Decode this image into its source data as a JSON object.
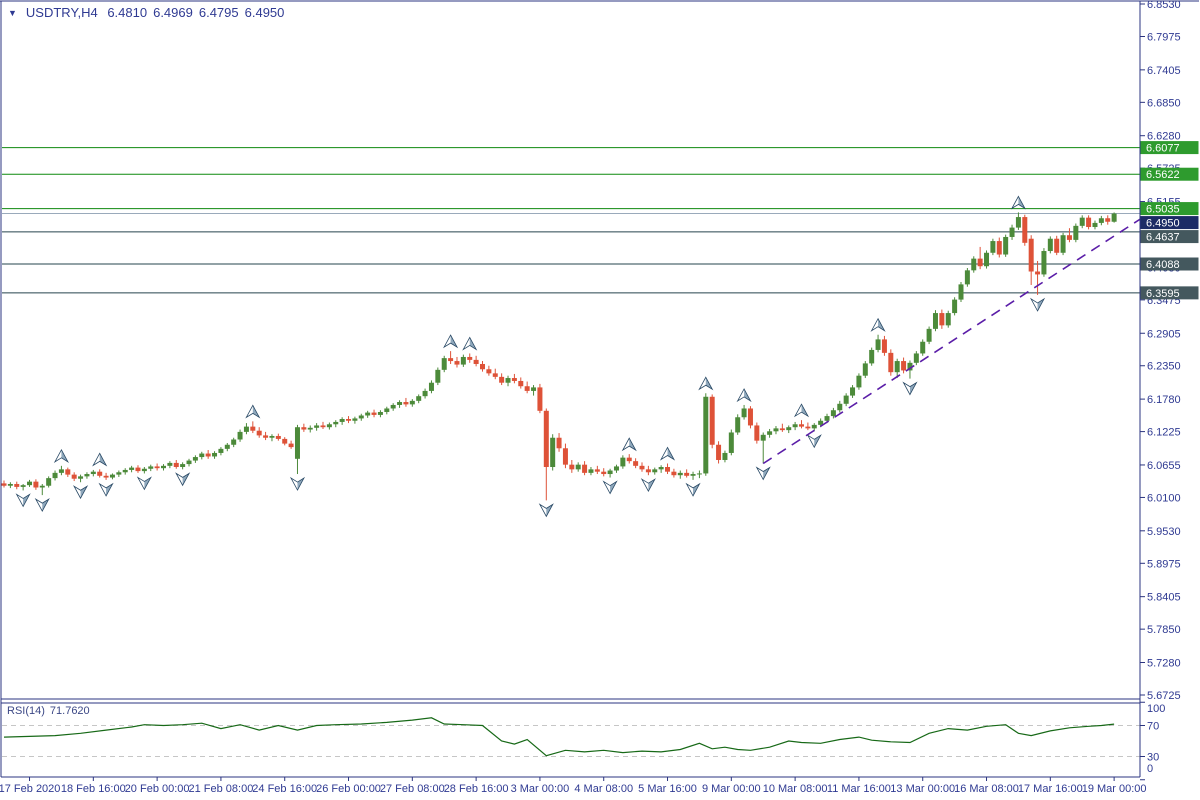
{
  "header": {
    "symbol_period": "USDTRY,H4",
    "open": "6.4810",
    "high": "6.4969",
    "low": "6.4795",
    "close": "6.4950"
  },
  "rsi_header": {
    "label": "RSI(14)",
    "value": "71.7620"
  },
  "colors": {
    "background": "#FFFFFF",
    "border": "#2B3480",
    "axis_text": "#2F3A92",
    "candle_up": "#4C8A3A",
    "candle_down": "#DE5238",
    "level_green_line": "#0F8A0F",
    "level_green_tag": "#2E9B2E",
    "level_dark_line": "#26444E",
    "level_dark_tag": "#44585E",
    "current_price_line": "#9AAABB",
    "current_price_tag": "#1C2B66",
    "trendline": "#5B1EA8",
    "rsi_line": "#176917",
    "rsi_dash": "#C6C6C6",
    "fractal_fill_light": "#FFFFFF",
    "fractal_fill_dark": "#8FA8BC",
    "fractal_stroke": "#2A4A66",
    "tag_text": "#FFFFFF"
  },
  "chart_data": {
    "type": "candlestick",
    "symbol": "USDTRY",
    "timeframe": "H4",
    "y_axis": {
      "top_price": 6.853,
      "bottom_price": 5.6725,
      "ticks": [
        6.853,
        6.7975,
        6.7405,
        6.685,
        6.628,
        6.5725,
        6.5155,
        6.46,
        6.403,
        6.3475,
        6.2905,
        6.235,
        6.178,
        6.1225,
        6.0655,
        6.01,
        5.953,
        5.8975,
        5.8405,
        5.785,
        5.728,
        5.6725
      ]
    },
    "x_axis": {
      "labels": [
        "17 Feb 2020",
        "18 Feb 16:00",
        "20 Feb 00:00",
        "21 Feb 08:00",
        "24 Feb 16:00",
        "26 Feb 00:00",
        "27 Feb 08:00",
        "28 Feb 16:00",
        "3 Mar 00:00",
        "4 Mar 08:00",
        "5 Mar 16:00",
        "9 Mar 00:00",
        "10 Mar 08:00",
        "11 Mar 16:00",
        "13 Mar 00:00",
        "16 Mar 08:00",
        "17 Mar 16:00",
        "19 Mar 00:00"
      ],
      "first_label_bar": 4,
      "bars_per_label": 10
    },
    "levels": [
      {
        "price": 6.6077,
        "label": "6.6077",
        "kind": "green"
      },
      {
        "price": 6.5622,
        "label": "6.5622",
        "kind": "green"
      },
      {
        "price": 6.5035,
        "label": "6.5035",
        "kind": "green"
      },
      {
        "price": 6.4637,
        "label": "6.4637",
        "kind": "dark"
      },
      {
        "price": 6.4088,
        "label": "6.4088",
        "kind": "dark"
      },
      {
        "price": 6.3595,
        "label": "6.3595",
        "kind": "dark"
      }
    ],
    "current_price": {
      "value": 6.495,
      "label": "6.4950"
    },
    "trendline": {
      "anchor1": {
        "bar": 119,
        "price": 6.068
      },
      "anchor2": {
        "bar": 180,
        "price": 6.499
      },
      "style": "dashed"
    },
    "candles": [
      [
        6.034,
        6.039,
        6.027,
        6.03
      ],
      [
        6.03,
        6.036,
        6.026,
        6.033
      ],
      [
        6.033,
        6.037,
        6.024,
        6.028
      ],
      [
        6.028,
        6.033,
        6.022,
        6.031
      ],
      [
        6.031,
        6.04,
        6.028,
        6.037
      ],
      [
        6.037,
        6.041,
        6.023,
        6.027
      ],
      [
        6.027,
        6.033,
        6.014,
        6.03
      ],
      [
        6.03,
        6.046,
        6.027,
        6.043
      ],
      [
        6.043,
        6.056,
        6.039,
        6.052
      ],
      [
        6.052,
        6.064,
        6.048,
        6.058
      ],
      [
        6.058,
        6.061,
        6.045,
        6.049
      ],
      [
        6.049,
        6.053,
        6.038,
        6.042
      ],
      [
        6.042,
        6.049,
        6.036,
        6.046
      ],
      [
        6.046,
        6.053,
        6.042,
        6.05
      ],
      [
        6.05,
        6.057,
        6.046,
        6.054
      ],
      [
        6.054,
        6.058,
        6.044,
        6.047
      ],
      [
        6.047,
        6.052,
        6.04,
        6.044
      ],
      [
        6.044,
        6.051,
        6.041,
        6.049
      ],
      [
        6.049,
        6.056,
        6.045,
        6.053
      ],
      [
        6.053,
        6.06,
        6.049,
        6.057
      ],
      [
        6.057,
        6.064,
        6.053,
        6.061
      ],
      [
        6.061,
        6.065,
        6.052,
        6.055
      ],
      [
        6.055,
        6.062,
        6.051,
        6.059
      ],
      [
        6.059,
        6.066,
        6.055,
        6.063
      ],
      [
        6.063,
        6.068,
        6.056,
        6.06
      ],
      [
        6.06,
        6.067,
        6.056,
        6.064
      ],
      [
        6.064,
        6.072,
        6.06,
        6.069
      ],
      [
        6.069,
        6.074,
        6.059,
        6.062
      ],
      [
        6.062,
        6.07,
        6.058,
        6.067
      ],
      [
        6.067,
        6.076,
        6.063,
        6.073
      ],
      [
        6.073,
        6.082,
        6.069,
        6.079
      ],
      [
        6.079,
        6.088,
        6.075,
        6.085
      ],
      [
        6.085,
        6.091,
        6.076,
        6.08
      ],
      [
        6.08,
        6.089,
        6.076,
        6.086
      ],
      [
        6.086,
        6.096,
        6.082,
        6.093
      ],
      [
        6.093,
        6.103,
        6.089,
        6.1
      ],
      [
        6.1,
        6.112,
        6.096,
        6.109
      ],
      [
        6.109,
        6.126,
        6.105,
        6.122
      ],
      [
        6.122,
        6.137,
        6.118,
        6.131
      ],
      [
        6.131,
        6.14,
        6.12,
        6.124
      ],
      [
        6.124,
        6.13,
        6.112,
        6.116
      ],
      [
        6.116,
        6.122,
        6.108,
        6.112
      ],
      [
        6.112,
        6.118,
        6.106,
        6.115
      ],
      [
        6.115,
        6.119,
        6.107,
        6.11
      ],
      [
        6.11,
        6.113,
        6.099,
        6.102
      ],
      [
        6.102,
        6.107,
        6.093,
        6.096
      ],
      [
        6.076,
        6.134,
        6.05,
        6.13
      ],
      [
        6.13,
        6.136,
        6.122,
        6.126
      ],
      [
        6.126,
        6.133,
        6.121,
        6.129
      ],
      [
        6.129,
        6.137,
        6.124,
        6.133
      ],
      [
        6.133,
        6.139,
        6.127,
        6.13
      ],
      [
        6.13,
        6.138,
        6.126,
        6.135
      ],
      [
        6.135,
        6.142,
        6.13,
        6.139
      ],
      [
        6.139,
        6.147,
        6.134,
        6.144
      ],
      [
        6.144,
        6.149,
        6.137,
        6.141
      ],
      [
        6.141,
        6.148,
        6.136,
        6.145
      ],
      [
        6.145,
        6.153,
        6.141,
        6.15
      ],
      [
        6.15,
        6.158,
        6.146,
        6.155
      ],
      [
        6.155,
        6.16,
        6.147,
        6.151
      ],
      [
        6.151,
        6.159,
        6.147,
        6.156
      ],
      [
        6.156,
        6.165,
        6.152,
        6.162
      ],
      [
        6.162,
        6.171,
        6.158,
        6.168
      ],
      [
        6.168,
        6.176,
        6.163,
        6.173
      ],
      [
        6.173,
        6.18,
        6.165,
        6.169
      ],
      [
        6.169,
        6.178,
        6.165,
        6.175
      ],
      [
        6.175,
        6.186,
        6.171,
        6.183
      ],
      [
        6.183,
        6.196,
        6.179,
        6.192
      ],
      [
        6.192,
        6.21,
        6.188,
        6.206
      ],
      [
        6.206,
        6.232,
        6.202,
        6.228
      ],
      [
        6.228,
        6.252,
        6.224,
        6.248
      ],
      [
        6.248,
        6.26,
        6.238,
        6.243
      ],
      [
        6.243,
        6.25,
        6.232,
        6.237
      ],
      [
        6.237,
        6.254,
        6.233,
        6.25
      ],
      [
        6.25,
        6.256,
        6.24,
        6.245
      ],
      [
        6.245,
        6.252,
        6.234,
        6.238
      ],
      [
        6.238,
        6.243,
        6.225,
        6.229
      ],
      [
        6.229,
        6.235,
        6.218,
        6.222
      ],
      [
        6.222,
        6.23,
        6.212,
        6.216
      ],
      [
        6.216,
        6.222,
        6.202,
        6.206
      ],
      [
        6.206,
        6.218,
        6.2,
        6.214
      ],
      [
        6.214,
        6.221,
        6.205,
        6.209
      ],
      [
        6.209,
        6.215,
        6.196,
        6.2
      ],
      [
        6.2,
        6.208,
        6.188,
        6.192
      ],
      [
        6.192,
        6.202,
        6.184,
        6.198
      ],
      [
        6.198,
        6.204,
        6.154,
        6.158
      ],
      [
        6.158,
        6.162,
        6.005,
        6.062
      ],
      [
        6.062,
        6.118,
        6.056,
        6.112
      ],
      [
        6.112,
        6.12,
        6.088,
        6.094
      ],
      [
        6.094,
        6.102,
        6.06,
        6.066
      ],
      [
        6.066,
        6.074,
        6.052,
        6.058
      ],
      [
        6.058,
        6.07,
        6.054,
        6.066
      ],
      [
        6.066,
        6.072,
        6.048,
        6.052
      ],
      [
        6.052,
        6.062,
        6.048,
        6.058
      ],
      [
        6.058,
        6.064,
        6.05,
        6.054
      ],
      [
        6.054,
        6.06,
        6.046,
        6.05
      ],
      [
        6.05,
        6.059,
        6.044,
        6.056
      ],
      [
        6.056,
        6.066,
        6.052,
        6.063
      ],
      [
        6.063,
        6.082,
        6.059,
        6.078
      ],
      [
        6.078,
        6.084,
        6.068,
        6.072
      ],
      [
        6.072,
        6.077,
        6.06,
        6.064
      ],
      [
        6.064,
        6.07,
        6.054,
        6.058
      ],
      [
        6.058,
        6.064,
        6.048,
        6.053
      ],
      [
        6.053,
        6.061,
        6.049,
        6.058
      ],
      [
        6.058,
        6.065,
        6.052,
        6.062
      ],
      [
        6.062,
        6.068,
        6.05,
        6.054
      ],
      [
        6.054,
        6.059,
        6.044,
        6.048
      ],
      [
        6.048,
        6.056,
        6.042,
        6.052
      ],
      [
        6.052,
        6.058,
        6.044,
        6.047
      ],
      [
        6.047,
        6.054,
        6.04,
        6.05
      ],
      [
        6.05,
        6.056,
        6.043,
        6.051
      ],
      [
        6.051,
        6.188,
        6.047,
        6.182
      ],
      [
        6.182,
        6.186,
        6.094,
        6.1
      ],
      [
        6.1,
        6.106,
        6.068,
        6.074
      ],
      [
        6.074,
        6.09,
        6.07,
        6.086
      ],
      [
        6.086,
        6.126,
        6.082,
        6.121
      ],
      [
        6.121,
        6.152,
        6.117,
        6.147
      ],
      [
        6.147,
        6.168,
        6.143,
        6.162
      ],
      [
        6.162,
        6.166,
        6.128,
        6.133
      ],
      [
        6.133,
        6.138,
        6.102,
        6.107
      ],
      [
        6.107,
        6.121,
        6.068,
        6.117
      ],
      [
        6.117,
        6.127,
        6.112,
        6.123
      ],
      [
        6.123,
        6.132,
        6.118,
        6.128
      ],
      [
        6.128,
        6.136,
        6.122,
        6.125
      ],
      [
        6.125,
        6.133,
        6.12,
        6.13
      ],
      [
        6.13,
        6.139,
        6.125,
        6.135
      ],
      [
        6.135,
        6.142,
        6.128,
        6.131
      ],
      [
        6.131,
        6.138,
        6.125,
        6.128
      ],
      [
        6.128,
        6.137,
        6.123,
        6.134
      ],
      [
        6.134,
        6.145,
        6.13,
        6.141
      ],
      [
        6.141,
        6.153,
        6.137,
        6.149
      ],
      [
        6.149,
        6.163,
        6.145,
        6.159
      ],
      [
        6.159,
        6.175,
        6.155,
        6.17
      ],
      [
        6.17,
        6.188,
        6.166,
        6.184
      ],
      [
        6.184,
        6.202,
        6.18,
        6.198
      ],
      [
        6.198,
        6.222,
        6.194,
        6.218
      ],
      [
        6.218,
        6.243,
        6.214,
        6.239
      ],
      [
        6.239,
        6.266,
        6.235,
        6.262
      ],
      [
        6.262,
        6.288,
        6.258,
        6.28
      ],
      [
        6.28,
        6.286,
        6.252,
        6.257
      ],
      [
        6.257,
        6.263,
        6.218,
        6.224
      ],
      [
        6.224,
        6.247,
        6.214,
        6.243
      ],
      [
        6.243,
        6.249,
        6.222,
        6.227
      ],
      [
        6.227,
        6.244,
        6.213,
        6.24
      ],
      [
        6.24,
        6.26,
        6.236,
        6.256
      ],
      [
        6.256,
        6.28,
        6.252,
        6.276
      ],
      [
        6.276,
        6.302,
        6.272,
        6.298
      ],
      [
        6.298,
        6.33,
        6.294,
        6.325
      ],
      [
        6.325,
        6.331,
        6.298,
        6.304
      ],
      [
        6.304,
        6.329,
        6.3,
        6.325
      ],
      [
        6.325,
        6.352,
        6.321,
        6.348
      ],
      [
        6.348,
        6.378,
        6.344,
        6.374
      ],
      [
        6.374,
        6.402,
        6.37,
        6.398
      ],
      [
        6.398,
        6.422,
        6.394,
        6.418
      ],
      [
        6.418,
        6.438,
        6.4,
        6.405
      ],
      [
        6.405,
        6.432,
        6.401,
        6.428
      ],
      [
        6.428,
        6.452,
        6.424,
        6.448
      ],
      [
        6.448,
        6.454,
        6.42,
        6.425
      ],
      [
        6.425,
        6.459,
        6.421,
        6.455
      ],
      [
        6.455,
        6.476,
        6.45,
        6.471
      ],
      [
        6.471,
        6.497,
        6.467,
        6.489
      ],
      [
        6.489,
        6.493,
        6.44,
        6.445
      ],
      [
        6.452,
        6.458,
        6.373,
        6.396
      ],
      [
        6.396,
        6.414,
        6.356,
        6.391
      ],
      [
        6.391,
        6.436,
        6.387,
        6.431
      ],
      [
        6.431,
        6.456,
        6.427,
        6.452
      ],
      [
        6.452,
        6.457,
        6.424,
        6.428
      ],
      [
        6.428,
        6.462,
        6.424,
        6.458
      ],
      [
        6.458,
        6.47,
        6.446,
        6.45
      ],
      [
        6.45,
        6.478,
        6.446,
        6.474
      ],
      [
        6.474,
        6.492,
        6.47,
        6.488
      ],
      [
        6.488,
        6.492,
        6.468,
        6.472
      ],
      [
        6.472,
        6.483,
        6.468,
        6.479
      ],
      [
        6.479,
        6.491,
        6.475,
        6.487
      ],
      [
        6.487,
        6.492,
        6.476,
        6.481
      ],
      [
        6.481,
        6.4969,
        6.4795,
        6.495
      ]
    ],
    "rsi": {
      "label": "RSI(14)",
      "value": 71.762,
      "scale_labels": [
        100,
        70,
        30,
        0
      ],
      "overbought": 70,
      "oversold": 30,
      "points": [
        [
          0,
          55
        ],
        [
          4,
          56
        ],
        [
          8,
          57
        ],
        [
          12,
          60
        ],
        [
          16,
          64
        ],
        [
          20,
          68
        ],
        [
          22,
          71
        ],
        [
          25,
          70
        ],
        [
          28,
          71
        ],
        [
          31,
          73
        ],
        [
          34,
          66
        ],
        [
          37,
          71
        ],
        [
          40,
          64
        ],
        [
          43,
          70
        ],
        [
          46,
          64
        ],
        [
          49,
          70
        ],
        [
          52,
          71
        ],
        [
          56,
          72
        ],
        [
          60,
          74
        ],
        [
          64,
          77
        ],
        [
          67,
          80
        ],
        [
          69,
          72
        ],
        [
          72,
          71
        ],
        [
          75,
          70
        ],
        [
          78,
          50
        ],
        [
          80,
          46
        ],
        [
          82,
          52
        ],
        [
          85,
          31
        ],
        [
          88,
          38
        ],
        [
          91,
          36
        ],
        [
          94,
          38
        ],
        [
          97,
          35
        ],
        [
          100,
          37
        ],
        [
          103,
          36
        ],
        [
          106,
          39
        ],
        [
          109,
          47
        ],
        [
          111,
          40
        ],
        [
          113,
          42
        ],
        [
          115,
          39
        ],
        [
          117,
          38
        ],
        [
          120,
          42
        ],
        [
          123,
          50
        ],
        [
          125,
          48
        ],
        [
          128,
          47
        ],
        [
          131,
          52
        ],
        [
          134,
          55
        ],
        [
          136,
          51
        ],
        [
          139,
          49
        ],
        [
          142,
          48
        ],
        [
          145,
          60
        ],
        [
          148,
          66
        ],
        [
          151,
          64
        ],
        [
          154,
          69
        ],
        [
          157,
          71
        ],
        [
          159,
          60
        ],
        [
          161,
          57
        ],
        [
          164,
          63
        ],
        [
          167,
          67
        ],
        [
          170,
          69
        ],
        [
          172,
          70
        ],
        [
          174,
          71.8
        ]
      ]
    }
  }
}
